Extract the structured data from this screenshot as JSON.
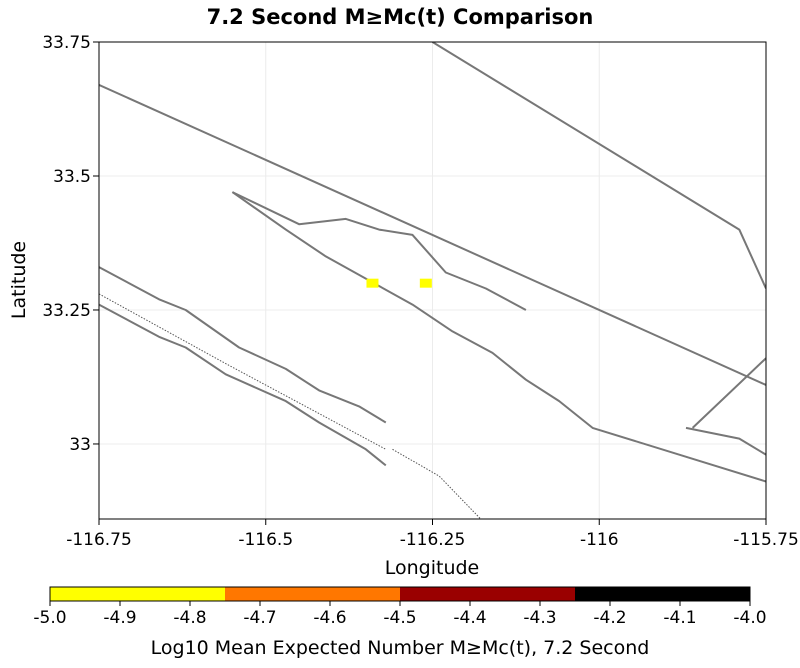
{
  "chart_data": {
    "type": "heatmap",
    "title": "7.2 Second M≥Mc(t) Comparison",
    "xlabel": "Longitude",
    "ylabel": "Latitude",
    "xlim": [
      -116.75,
      -115.75
    ],
    "ylim": [
      32.86,
      33.75
    ],
    "xticks": [
      -116.75,
      -116.5,
      -116.25,
      -116,
      -115.75
    ],
    "xtick_labels": [
      "-116.75",
      "-116.5",
      "-116.25",
      "-116",
      "-115.75"
    ],
    "yticks": [
      33,
      33.25,
      33.5,
      33.75
    ],
    "ytick_labels": [
      "33",
      "33.25",
      "33.5",
      "33.75"
    ],
    "grid": true,
    "cells": [
      {
        "lon": -116.34,
        "lat": 33.3,
        "value": -5.0
      },
      {
        "lon": -116.26,
        "lat": 33.3,
        "value": -5.0
      }
    ],
    "faults": [
      [
        [
          -116.75,
          33.67
        ],
        [
          -115.75,
          33.11
        ]
      ],
      [
        [
          -116.25,
          33.75
        ],
        [
          -115.79,
          33.4
        ],
        [
          -115.75,
          33.29
        ]
      ],
      [
        [
          -116.55,
          33.47
        ],
        [
          -116.45,
          33.41
        ],
        [
          -116.38,
          33.42
        ],
        [
          -116.33,
          33.4
        ],
        [
          -116.28,
          33.39
        ],
        [
          -116.23,
          33.32
        ],
        [
          -116.17,
          33.29
        ],
        [
          -116.11,
          33.25
        ]
      ],
      [
        [
          -116.75,
          33.33
        ],
        [
          -116.66,
          33.27
        ],
        [
          -116.62,
          33.25
        ],
        [
          -116.54,
          33.18
        ],
        [
          -116.47,
          33.14
        ],
        [
          -116.42,
          33.1
        ],
        [
          -116.36,
          33.07
        ],
        [
          -116.32,
          33.04
        ]
      ],
      [
        [
          -116.75,
          33.26
        ],
        [
          -116.66,
          33.2
        ],
        [
          -116.62,
          33.18
        ],
        [
          -116.56,
          33.13
        ],
        [
          -116.47,
          33.08
        ],
        [
          -116.42,
          33.04
        ],
        [
          -116.35,
          32.99
        ],
        [
          -116.32,
          32.96
        ]
      ],
      [
        [
          -116.55,
          33.47
        ],
        [
          -116.47,
          33.4
        ],
        [
          -116.41,
          33.35
        ],
        [
          -116.28,
          33.26
        ],
        [
          -116.22,
          33.21
        ],
        [
          -116.16,
          33.17
        ],
        [
          -116.11,
          33.12
        ],
        [
          -116.06,
          33.08
        ],
        [
          -116.01,
          33.03
        ],
        [
          -115.75,
          32.93
        ]
      ],
      [
        [
          -115.87,
          33.03
        ],
        [
          -115.79,
          33.01
        ],
        [
          -115.75,
          32.98
        ]
      ],
      [
        [
          -115.86,
          33.03
        ],
        [
          -115.75,
          33.16
        ]
      ]
    ],
    "dotted_faults": [
      [
        [
          -116.75,
          33.28
        ],
        [
          -116.56,
          33.15
        ],
        [
          -116.32,
          32.99
        ]
      ],
      [
        [
          -116.31,
          32.99
        ],
        [
          -116.24,
          32.94
        ],
        [
          -116.17,
          32.85
        ]
      ]
    ],
    "colorbar": {
      "label": "Log10 Mean Expected Number M≥Mc(t), 7.2 Second",
      "ticks": [
        "-5.0",
        "-4.9",
        "-4.8",
        "-4.7",
        "-4.6",
        "-4.5",
        "-4.4",
        "-4.3",
        "-4.2",
        "-4.1",
        "-4.0"
      ],
      "bins": [
        {
          "from": -5.0,
          "to": -4.75,
          "color": "#ffff00"
        },
        {
          "from": -4.75,
          "to": -4.5,
          "color": "#ff7700"
        },
        {
          "from": -4.5,
          "to": -4.25,
          "color": "#9a0000"
        },
        {
          "from": -4.25,
          "to": -4.0,
          "color": "#000000"
        }
      ]
    }
  }
}
